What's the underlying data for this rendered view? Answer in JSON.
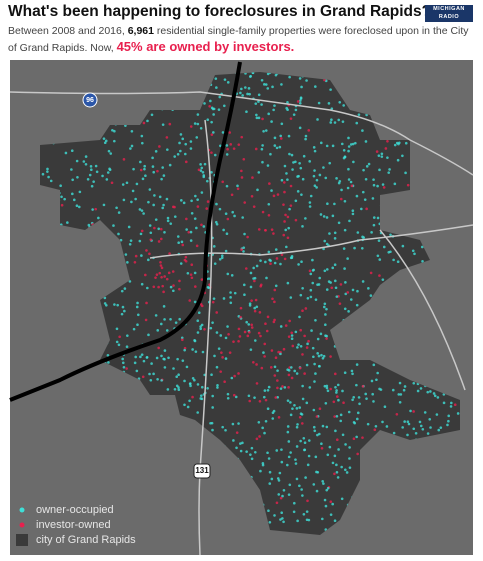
{
  "header": {
    "title": "What's been happening to foreclosures in Grand Rapids?",
    "logo": [
      "MICHIGAN",
      "RADIO"
    ]
  },
  "description": {
    "lead": "Between 2008 and 2016, ",
    "count": "6,961",
    "middle": " residential single-family properties were foreclosed upon in the City of Grand Rapids. Now, ",
    "highlight": "45% are owned by investors."
  },
  "map": {
    "highway_labels": [
      "96",
      "131"
    ]
  },
  "legend": [
    "owner-occupied",
    "investor-owned",
    "city of Grand Rapids"
  ]
}
